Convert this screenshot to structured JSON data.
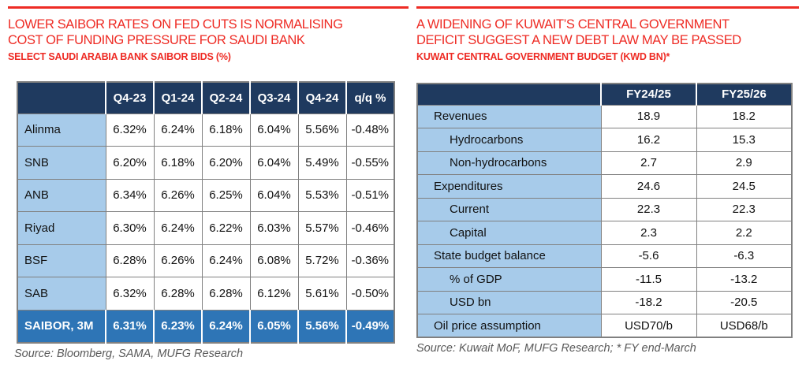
{
  "colors": {
    "accent_red": "#EE2B24",
    "header_navy": "#1F3A5F",
    "label_blue": "#A7CBEA",
    "saibor_row_blue": "#2E75B6",
    "border_gray": "#808080",
    "source_gray": "#595959"
  },
  "panels": [
    {
      "title_lines": [
        "LOWER SAIBOR RATES ON FED CUTS IS NORMALISING",
        "COST OF FUNDING PRESSURE FOR SAUDI BANK"
      ],
      "subtitle": "SELECT SAUDI ARABIA BANK SAIBOR BIDS (%)",
      "source": "Source: Bloomberg, SAMA, MUFG Research"
    },
    {
      "title_lines": [
        "A WIDENING OF KUWAIT’S CENTRAL GOVERNMENT",
        "DEFICIT SUGGEST A NEW DEBT LAW MAY BE PASSED"
      ],
      "subtitle": "KUWAIT CENTRAL GOVERNMENT BUDGET (KWD BN)*",
      "source": "Source: Kuwait MoF, MUFG Research; * FY end-March"
    }
  ],
  "left_table": {
    "headers": [
      "",
      "Q4-23",
      "Q1-24",
      "Q2-24",
      "Q3-24",
      "Q4-24",
      "q/q %"
    ],
    "rows": [
      [
        "Alinma",
        "6.32%",
        "6.24%",
        "6.18%",
        "6.04%",
        "5.56%",
        "-0.48%"
      ],
      [
        "SNB",
        "6.20%",
        "6.18%",
        "6.20%",
        "6.04%",
        "5.49%",
        "-0.55%"
      ],
      [
        "ANB",
        "6.34%",
        "6.26%",
        "6.25%",
        "6.04%",
        "5.53%",
        "-0.51%"
      ],
      [
        "Riyad",
        "6.30%",
        "6.24%",
        "6.22%",
        "6.03%",
        "5.57%",
        "-0.46%"
      ],
      [
        "BSF",
        "6.28%",
        "6.26%",
        "6.24%",
        "6.08%",
        "5.72%",
        "-0.36%"
      ],
      [
        "SAB",
        "6.32%",
        "6.28%",
        "6.28%",
        "6.12%",
        "5.61%",
        "-0.50%"
      ]
    ],
    "footer": [
      "SAIBOR, 3M",
      "6.31%",
      "6.23%",
      "6.24%",
      "6.05%",
      "5.56%",
      "-0.49%"
    ]
  },
  "right_table": {
    "headers": [
      "",
      "FY24/25",
      "FY25/26"
    ],
    "rows": [
      [
        "Revenues",
        "18.9",
        "18.2"
      ],
      [
        "Hydrocarbons",
        "16.2",
        "15.3"
      ],
      [
        "Non-hydrocarbons",
        "2.7",
        "2.9"
      ],
      [
        "Expenditures",
        "24.6",
        "24.5"
      ],
      [
        "Current",
        "22.3",
        "22.3"
      ],
      [
        "Capital",
        "2.3",
        "2.2"
      ],
      [
        "State budget balance",
        "-5.6",
        "-6.3"
      ],
      [
        "% of GDP",
        "-11.5",
        "-13.2"
      ],
      [
        "USD bn",
        "-18.2",
        "-20.5"
      ],
      [
        "Oil price assumption",
        "USD70/b",
        "USD68/b"
      ]
    ],
    "indented": [
      1,
      2,
      4,
      5,
      7,
      8
    ]
  }
}
